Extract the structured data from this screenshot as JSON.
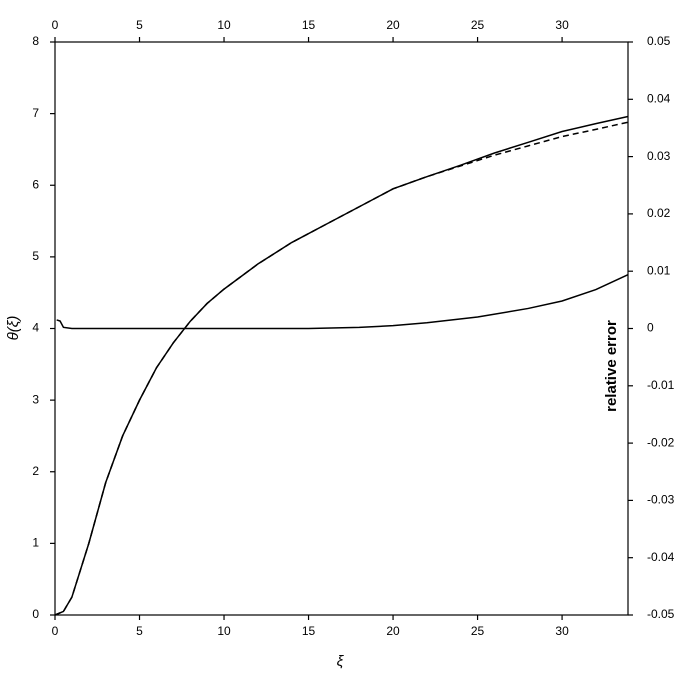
{
  "chart_data": {
    "type": "line",
    "xlabel": "ξ",
    "ylabel": "θ(ξ)",
    "y2label": "relative error",
    "xlim": [
      0,
      33.9
    ],
    "xticks": [
      0,
      5,
      10,
      15,
      20,
      25,
      30
    ],
    "ylim": [
      0,
      8
    ],
    "yticks": [
      0,
      1,
      2,
      3,
      4,
      5,
      6,
      7,
      8
    ],
    "y2lim": [
      -0.05,
      0.05
    ],
    "y2ticks": [
      -0.05,
      -0.04,
      -0.03,
      -0.02,
      -0.01,
      0,
      0.01,
      0.02,
      0.03,
      0.04,
      0.05
    ],
    "series": [
      {
        "color": "#000000",
        "dash": "none",
        "x": [
          0,
          0.5,
          1,
          2,
          3,
          4,
          5,
          6,
          7,
          8,
          9,
          10,
          12,
          14,
          16,
          18,
          20,
          22,
          24,
          26,
          28,
          30,
          32,
          33.9
        ],
        "values": [
          0,
          0.05,
          0.25,
          1.0,
          1.85,
          2.5,
          3.0,
          3.45,
          3.8,
          4.1,
          4.35,
          4.55,
          4.9,
          5.2,
          5.45,
          5.7,
          5.95,
          6.12,
          6.28,
          6.45,
          6.6,
          6.75,
          6.86,
          6.96
        ]
      },
      {
        "color": "#000000",
        "dash": "6 4",
        "x": [
          0,
          0.5,
          1,
          2,
          3,
          4,
          5,
          6,
          7,
          8,
          9,
          10,
          12,
          14,
          16,
          18,
          20,
          22,
          24,
          26,
          28,
          30,
          32,
          33.9
        ],
        "values": [
          0,
          0.05,
          0.25,
          1.0,
          1.85,
          2.5,
          3.0,
          3.45,
          3.8,
          4.1,
          4.35,
          4.55,
          4.9,
          5.2,
          5.45,
          5.7,
          5.95,
          6.12,
          6.27,
          6.42,
          6.55,
          6.68,
          6.78,
          6.88
        ]
      },
      {
        "color": "#000000",
        "dash": "none",
        "axis": "y2",
        "x": [
          0.1,
          0.3,
          0.5,
          1,
          5,
          10,
          15,
          18,
          20,
          22,
          25,
          28,
          30,
          32,
          33.9
        ],
        "values": [
          0.0015,
          0.0013,
          0.0002,
          0,
          0,
          0,
          0,
          0.0002,
          0.0005,
          0.001,
          0.002,
          0.0035,
          0.0048,
          0.0068,
          0.0094
        ]
      }
    ]
  }
}
